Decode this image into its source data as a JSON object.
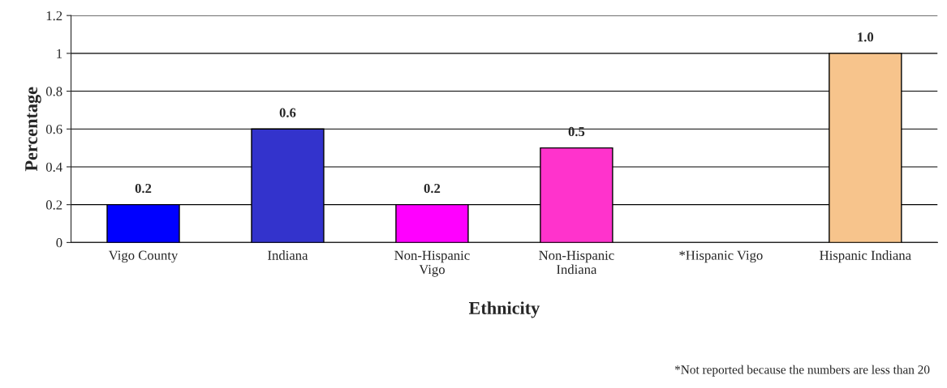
{
  "chart_data": {
    "type": "bar",
    "categories": [
      "Vigo County",
      "Indiana",
      "Non-Hispanic\nVigo",
      "Non-Hispanic\nIndiana",
      "*Hispanic Vigo",
      "Hispanic Indiana"
    ],
    "values": [
      0.2,
      0.6,
      0.2,
      0.5,
      null,
      1.0
    ],
    "colors": [
      "#0000ff",
      "#3333cc",
      "#ff00ff",
      "#ff33cc",
      "#000000",
      "#f7c48c"
    ],
    "value_labels": [
      "0.2",
      "0.6",
      "0.2",
      "0.5",
      null,
      "1.0"
    ],
    "xlabel": "Ethnicity",
    "ylabel": "Percentage",
    "ylim": [
      0,
      1.2
    ],
    "yticks": [
      0,
      0.2,
      0.4,
      0.6,
      0.8,
      1,
      1.2
    ],
    "grid": "y",
    "legend": false,
    "annotations": [
      "*Not reported because the numbers are less than 20"
    ]
  }
}
